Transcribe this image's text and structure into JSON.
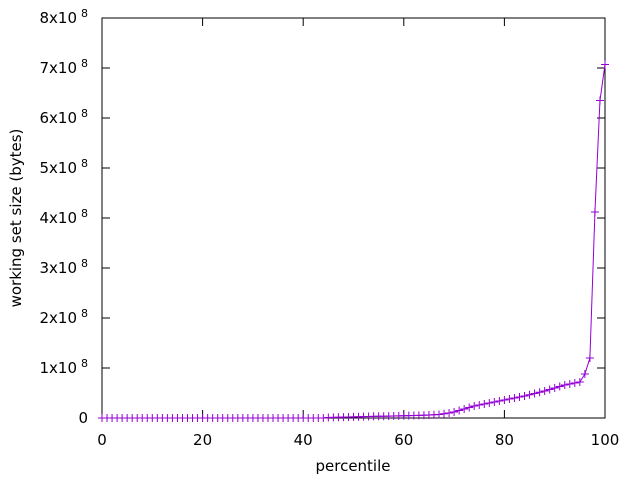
{
  "chart_data": {
    "type": "line",
    "xlabel": "percentile",
    "ylabel": "working set size (bytes)",
    "x": [
      0,
      1,
      2,
      3,
      4,
      5,
      6,
      7,
      8,
      9,
      10,
      11,
      12,
      13,
      14,
      15,
      16,
      17,
      18,
      19,
      20,
      21,
      22,
      23,
      24,
      25,
      26,
      27,
      28,
      29,
      30,
      31,
      32,
      33,
      34,
      35,
      36,
      37,
      38,
      39,
      40,
      41,
      42,
      43,
      44,
      45,
      46,
      47,
      48,
      49,
      50,
      51,
      52,
      53,
      54,
      55,
      56,
      57,
      58,
      59,
      60,
      61,
      62,
      63,
      64,
      65,
      66,
      67,
      68,
      69,
      70,
      71,
      72,
      73,
      74,
      75,
      76,
      77,
      78,
      79,
      80,
      81,
      82,
      83,
      84,
      85,
      86,
      87,
      88,
      89,
      90,
      91,
      92,
      93,
      94,
      95,
      96,
      97,
      98,
      99,
      100
    ],
    "values": [
      0,
      0,
      0,
      0,
      0,
      0,
      0,
      0,
      0,
      0,
      0,
      0,
      0,
      0,
      0,
      0,
      0,
      0,
      0,
      0,
      0,
      0,
      0,
      0,
      0,
      0,
      0,
      0,
      0,
      0,
      0,
      0,
      0,
      0,
      0,
      0,
      0,
      0,
      0,
      0,
      0,
      0,
      0,
      0,
      0,
      1000000,
      1200000,
      1500000,
      1800000,
      2000000,
      2200000,
      2500000,
      2800000,
      3000000,
      3200000,
      3400000,
      3600000,
      3800000,
      4000000,
      4200000,
      4400000,
      4700000,
      5000000,
      5300000,
      5600000,
      6000000,
      6400000,
      7000000,
      8500000,
      10000000,
      12000000,
      15000000,
      18000000,
      21000000,
      24000000,
      26000000,
      28000000,
      30000000,
      32000000,
      34000000,
      36000000,
      38000000,
      40000000,
      42000000,
      44000000,
      46500000,
      49000000,
      51500000,
      54000000,
      57000000,
      60000000,
      63000000,
      66000000,
      68000000,
      70000000,
      72000000,
      88000000,
      120000000,
      412000000,
      635000000,
      707000000
    ],
    "color": "#9400d3",
    "marker": "+",
    "xlim": [
      0,
      100
    ],
    "xticks": [
      0,
      20,
      40,
      60,
      80,
      100
    ],
    "ylim": [
      0,
      800000000
    ],
    "yticks": [
      0,
      {
        "value": 100000000,
        "label": "1x10",
        "exponent": "8"
      },
      {
        "value": 200000000,
        "label": "2x10",
        "exponent": "8"
      },
      {
        "value": 300000000,
        "label": "3x10",
        "exponent": "8"
      },
      {
        "value": 400000000,
        "label": "4x10",
        "exponent": "8"
      },
      {
        "value": 500000000,
        "label": "5x10",
        "exponent": "8"
      },
      {
        "value": 600000000,
        "label": "6x10",
        "exponent": "8"
      },
      {
        "value": 700000000,
        "label": "7x10",
        "exponent": "8"
      },
      {
        "value": 800000000,
        "label": "8x10",
        "exponent": "8"
      }
    ],
    "grid": false
  }
}
